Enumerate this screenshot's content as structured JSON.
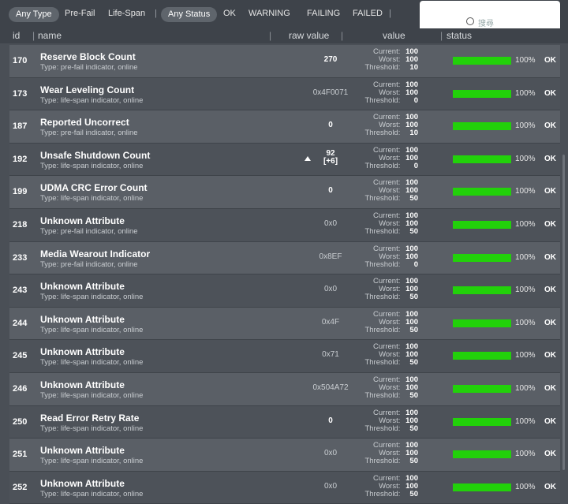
{
  "filters": {
    "type_options": [
      "Any Type",
      "Pre-Fail",
      "Life-Span"
    ],
    "status_options": [
      "Any Status",
      "OK",
      "WARNING",
      "FAILING",
      "FAILED"
    ],
    "sep": "|"
  },
  "search": {
    "placeholder": "搜尋"
  },
  "columns": {
    "id": "id",
    "name": "name",
    "raw": "raw value",
    "value": "value",
    "status": "status",
    "sep": "|"
  },
  "labels": {
    "current": "Current:",
    "worst": "Worst:",
    "threshold": "Threshold:"
  },
  "colors": {
    "bar_fill": "#22d10a",
    "bar_track": "#2a2e33"
  },
  "rows": [
    {
      "id": "170",
      "name": "Reserve Block Count",
      "type": "Type: pre-fail indicator, online",
      "raw": "270",
      "raw_bold": true,
      "current": "100",
      "worst": "100",
      "threshold": "10",
      "percent": 100,
      "pct_label": "100%",
      "status": "OK"
    },
    {
      "id": "173",
      "name": "Wear Leveling Count",
      "type": "Type: life-span indicator, online",
      "raw": "0x4F0071",
      "current": "100",
      "worst": "100",
      "threshold": "0",
      "percent": 100,
      "pct_label": "100%",
      "status": "OK"
    },
    {
      "id": "187",
      "name": "Reported Uncorrect",
      "type": "Type: pre-fail indicator, online",
      "raw": "0",
      "raw_bold": true,
      "current": "100",
      "worst": "100",
      "threshold": "10",
      "percent": 100,
      "pct_label": "100%",
      "status": "OK"
    },
    {
      "id": "192",
      "name": "Unsafe Shutdown Count",
      "type": "Type: life-span indicator, online",
      "raw": "92",
      "raw2": "[+6]",
      "up": true,
      "current": "100",
      "worst": "100",
      "threshold": "0",
      "percent": 100,
      "pct_label": "100%",
      "status": "OK"
    },
    {
      "id": "199",
      "name": "UDMA CRC Error Count",
      "type": "Type: life-span indicator, online",
      "raw": "0",
      "raw_bold": true,
      "current": "100",
      "worst": "100",
      "threshold": "50",
      "percent": 100,
      "pct_label": "100%",
      "status": "OK"
    },
    {
      "id": "218",
      "name": "Unknown Attribute",
      "type": "Type: pre-fail indicator, online",
      "raw": "0x0",
      "current": "100",
      "worst": "100",
      "threshold": "50",
      "percent": 100,
      "pct_label": "100%",
      "status": "OK"
    },
    {
      "id": "233",
      "name": "Media Wearout Indicator",
      "type": "Type: pre-fail indicator, online",
      "raw": "0x8EF",
      "current": "100",
      "worst": "100",
      "threshold": "0",
      "percent": 100,
      "pct_label": "100%",
      "status": "OK"
    },
    {
      "id": "243",
      "name": "Unknown Attribute",
      "type": "Type: life-span indicator, online",
      "raw": "0x0",
      "current": "100",
      "worst": "100",
      "threshold": "50",
      "percent": 100,
      "pct_label": "100%",
      "status": "OK"
    },
    {
      "id": "244",
      "name": "Unknown Attribute",
      "type": "Type: life-span indicator, online",
      "raw": "0x4F",
      "current": "100",
      "worst": "100",
      "threshold": "50",
      "percent": 100,
      "pct_label": "100%",
      "status": "OK"
    },
    {
      "id": "245",
      "name": "Unknown Attribute",
      "type": "Type: life-span indicator, online",
      "raw": "0x71",
      "current": "100",
      "worst": "100",
      "threshold": "50",
      "percent": 100,
      "pct_label": "100%",
      "status": "OK"
    },
    {
      "id": "246",
      "name": "Unknown Attribute",
      "type": "Type: life-span indicator, online",
      "raw": "0x504A72",
      "current": "100",
      "worst": "100",
      "threshold": "50",
      "percent": 100,
      "pct_label": "100%",
      "status": "OK"
    },
    {
      "id": "250",
      "name": "Read Error Retry Rate",
      "type": "Type: life-span indicator, online",
      "raw": "0",
      "raw_bold": true,
      "current": "100",
      "worst": "100",
      "threshold": "50",
      "percent": 100,
      "pct_label": "100%",
      "status": "OK"
    },
    {
      "id": "251",
      "name": "Unknown Attribute",
      "type": "Type: life-span indicator, online",
      "raw": "0x0",
      "current": "100",
      "worst": "100",
      "threshold": "50",
      "percent": 100,
      "pct_label": "100%",
      "status": "OK"
    },
    {
      "id": "252",
      "name": "Unknown Attribute",
      "type": "Type: life-span indicator, online",
      "raw": "0x0",
      "current": "100",
      "worst": "100",
      "threshold": "50",
      "percent": 100,
      "pct_label": "100%",
      "status": "OK"
    }
  ]
}
